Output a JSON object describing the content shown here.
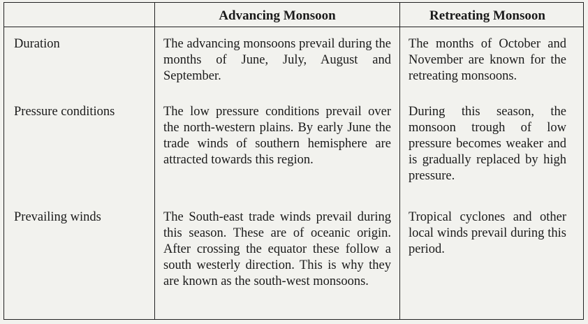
{
  "table": {
    "header": [
      "",
      "Advancing Monsoon",
      "Retreating Monsoon"
    ],
    "rows": [
      [
        "Duration",
        "The advancing monsoons prevail during the months of June, July, August and September.",
        "The months of October and November are known for the retreating monsoons."
      ],
      [
        "Pressure conditions",
        "The low pressure conditions prevail over the north-western plains. By early June the trade winds of southern hemisphere are attracted towards this region.",
        "During this season, the monsoon trough of low pressure becomes weaker and is gradually replaced by high pressure."
      ],
      [
        "Prevailing winds",
        "The South-east trade winds prevail during this season. These are of oceanic origin. After crossing the equator these follow a south westerly direction. This is why they are known as the south-west monsoons.",
        "Tropical cyclones and other local winds prevail during this period."
      ]
    ]
  }
}
